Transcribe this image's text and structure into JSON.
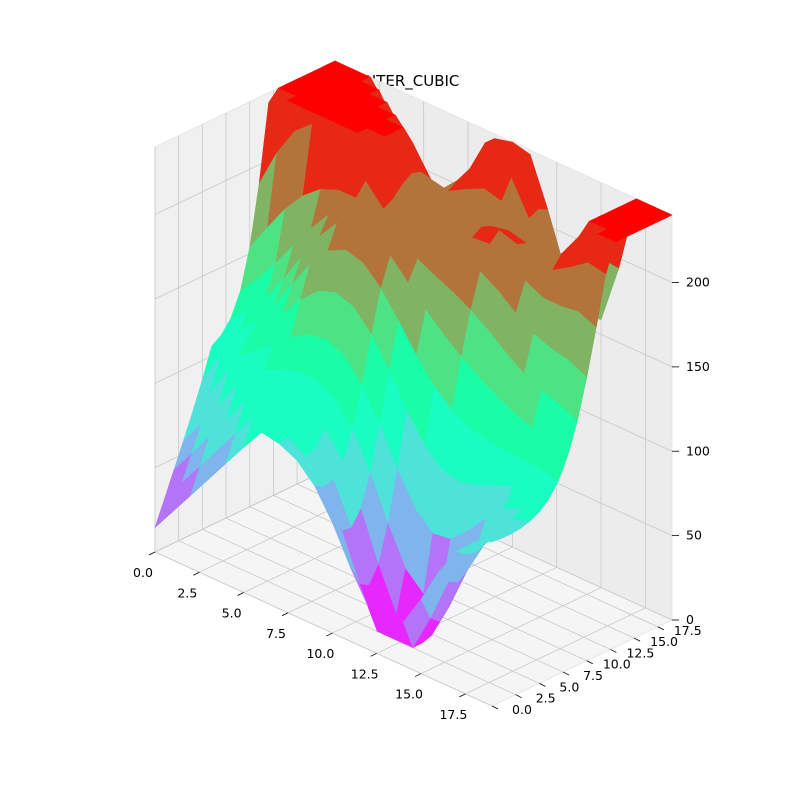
{
  "chart_data": {
    "type": "surface3d",
    "title": "INTER_CUBIC",
    "xlabel": "",
    "ylabel": "",
    "zlabel": "",
    "x_ticks": [
      "0.0",
      "2.5",
      "5.0",
      "7.5",
      "10.0",
      "12.5",
      "15.0",
      "17.5"
    ],
    "y_ticks": [
      "0.0",
      "2.5",
      "5.0",
      "7.5",
      "10.0",
      "12.5",
      "15.0",
      "17.5"
    ],
    "z_ticks": [
      "0",
      "50",
      "100",
      "150",
      "200"
    ],
    "xlim": [
      0,
      19
    ],
    "ylim": [
      0,
      19
    ],
    "zlim": [
      0,
      240
    ],
    "grid": true,
    "colormap": "rainbow",
    "grid_size": 20,
    "surface_description": "interpolated 20x20 height field; z from about 10 to about 240",
    "colors": {
      "pane": "#f2f2f2",
      "grid": "#c8c8c8"
    }
  }
}
